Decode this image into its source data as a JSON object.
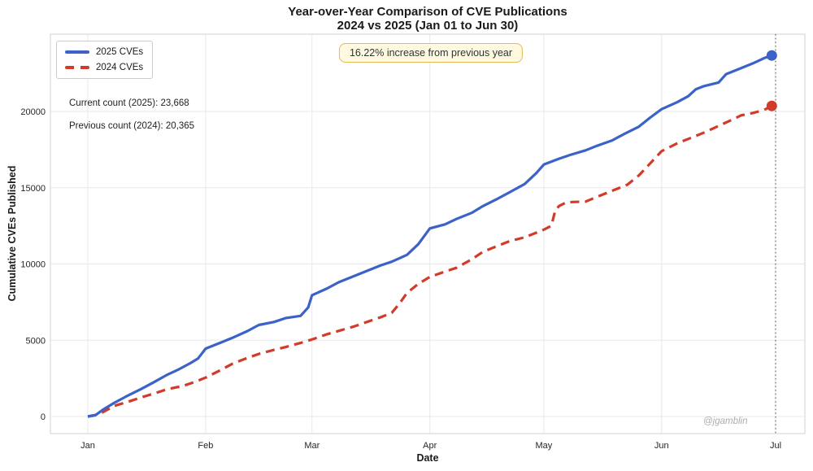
{
  "header": {
    "title_line1": "Year-over-Year Comparison of CVE Publications",
    "title_line2": "2024 vs 2025 (Jan 01 to Jun 30)"
  },
  "legend": {
    "items": [
      {
        "label": "2025 CVEs",
        "color": "#3a62c8",
        "style": "solid"
      },
      {
        "label": "2024 CVEs",
        "color": "#d23b29",
        "style": "dashed"
      }
    ]
  },
  "annotations": {
    "increase_note": "16.22% increase from previous year",
    "current_count": "Current count (2025): 23,668",
    "previous_count": "Previous count (2024): 20,365",
    "watermark": "@jgamblin"
  },
  "axes": {
    "x_label": "Date",
    "y_label": "Cumulative CVEs Published"
  },
  "colors": {
    "blue": "#3a62c8",
    "red": "#d23b29",
    "grid": "#e8e8e8",
    "spine": "#d9d9d9",
    "tick_text": "#262626",
    "end_marker_line": "#777777",
    "annotation_bg": "#fff9e0",
    "annotation_border": "#e3b959",
    "watermark": "#ababab"
  },
  "chart_data": {
    "type": "line",
    "title": "Year-over-Year Comparison of CVE Publications 2024 vs 2025 (Jan 01 to Jun 30)",
    "xlabel": "Date",
    "ylabel": "Cumulative CVEs Published",
    "x_unit": "days since Jan 01",
    "x_axis": {
      "tick_days": [
        0,
        31,
        59,
        90,
        120,
        151,
        181
      ],
      "tick_labels": [
        "Jan",
        "Feb",
        "Mar",
        "Apr",
        "May",
        "Jun",
        "Jul"
      ]
    },
    "y_axis": {
      "ticks": [
        0,
        5000,
        10000,
        15000,
        20000
      ],
      "tick_labels": [
        "0",
        "5000",
        "10000",
        "15000",
        "20000"
      ],
      "ylim": [
        -1150,
        24900
      ]
    },
    "grid": true,
    "legend_position": "upper left",
    "end_marker_day": 181,
    "series": [
      {
        "name": "2025 CVEs",
        "color": "#3a62c8",
        "dash": "solid",
        "final_value": 23668,
        "points": [
          [
            0,
            0
          ],
          [
            2,
            80
          ],
          [
            4,
            450
          ],
          [
            7,
            900
          ],
          [
            10,
            1300
          ],
          [
            14,
            1800
          ],
          [
            17,
            2200
          ],
          [
            21,
            2750
          ],
          [
            24,
            3100
          ],
          [
            27,
            3500
          ],
          [
            29,
            3800
          ],
          [
            31,
            4450
          ],
          [
            35,
            4850
          ],
          [
            38,
            5150
          ],
          [
            42,
            5600
          ],
          [
            45,
            6000
          ],
          [
            49,
            6200
          ],
          [
            52,
            6450
          ],
          [
            56,
            6600
          ],
          [
            58,
            7150
          ],
          [
            59,
            7950
          ],
          [
            63,
            8400
          ],
          [
            66,
            8800
          ],
          [
            70,
            9200
          ],
          [
            73,
            9500
          ],
          [
            77,
            9900
          ],
          [
            80,
            10150
          ],
          [
            84,
            10600
          ],
          [
            87,
            11300
          ],
          [
            90,
            12330
          ],
          [
            94,
            12600
          ],
          [
            97,
            12950
          ],
          [
            101,
            13350
          ],
          [
            104,
            13800
          ],
          [
            108,
            14300
          ],
          [
            111,
            14700
          ],
          [
            115,
            15250
          ],
          [
            118,
            15950
          ],
          [
            120,
            16520
          ],
          [
            124,
            16900
          ],
          [
            127,
            17150
          ],
          [
            131,
            17450
          ],
          [
            134,
            17750
          ],
          [
            138,
            18100
          ],
          [
            141,
            18500
          ],
          [
            145,
            19000
          ],
          [
            148,
            19600
          ],
          [
            151,
            20150
          ],
          [
            155,
            20600
          ],
          [
            158,
            21000
          ],
          [
            160,
            21450
          ],
          [
            162,
            21650
          ],
          [
            166,
            21900
          ],
          [
            168,
            22450
          ],
          [
            172,
            22850
          ],
          [
            175,
            23150
          ],
          [
            178,
            23500
          ],
          [
            180,
            23668
          ]
        ]
      },
      {
        "name": "2024 CVEs",
        "color": "#d23b29",
        "dash": "dashed",
        "final_value": 20365,
        "points": [
          [
            0,
            0
          ],
          [
            3,
            150
          ],
          [
            7,
            700
          ],
          [
            11,
            1000
          ],
          [
            14,
            1250
          ],
          [
            18,
            1550
          ],
          [
            21,
            1800
          ],
          [
            25,
            2000
          ],
          [
            28,
            2250
          ],
          [
            31,
            2550
          ],
          [
            35,
            3050
          ],
          [
            38,
            3450
          ],
          [
            42,
            3840
          ],
          [
            45,
            4100
          ],
          [
            49,
            4370
          ],
          [
            52,
            4550
          ],
          [
            56,
            4820
          ],
          [
            59,
            5050
          ],
          [
            63,
            5400
          ],
          [
            70,
            5900
          ],
          [
            77,
            6500
          ],
          [
            80,
            6800
          ],
          [
            82,
            7400
          ],
          [
            84,
            8100
          ],
          [
            87,
            8700
          ],
          [
            90,
            9150
          ],
          [
            94,
            9500
          ],
          [
            97,
            9750
          ],
          [
            101,
            10300
          ],
          [
            104,
            10800
          ],
          [
            108,
            11200
          ],
          [
            111,
            11500
          ],
          [
            115,
            11750
          ],
          [
            118,
            12050
          ],
          [
            120,
            12250
          ],
          [
            122,
            12500
          ],
          [
            123,
            13500
          ],
          [
            124,
            13800
          ],
          [
            126,
            14050
          ],
          [
            131,
            14090
          ],
          [
            135,
            14500
          ],
          [
            138,
            14800
          ],
          [
            142,
            15200
          ],
          [
            145,
            15800
          ],
          [
            148,
            16600
          ],
          [
            151,
            17400
          ],
          [
            155,
            17900
          ],
          [
            158,
            18200
          ],
          [
            162,
            18600
          ],
          [
            166,
            19050
          ],
          [
            169,
            19400
          ],
          [
            172,
            19750
          ],
          [
            175,
            19900
          ],
          [
            178,
            20100
          ],
          [
            180,
            20365
          ]
        ]
      }
    ]
  }
}
